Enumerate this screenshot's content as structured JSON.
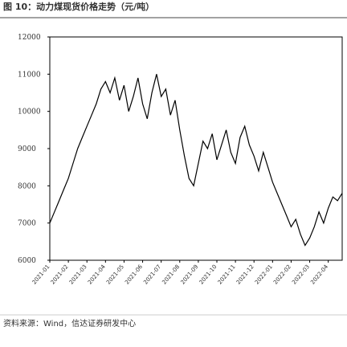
{
  "chart_data": {
    "type": "line",
    "title": "图 10：动力煤现货价格走势（元/吨）",
    "source": "资料来源：Wind，信达证券研发中心",
    "categories": [
      "2021-01",
      null,
      null,
      null,
      "2021-02",
      null,
      null,
      null,
      "2021-03",
      null,
      null,
      null,
      "2021-04",
      null,
      null,
      null,
      "2021-05",
      null,
      null,
      null,
      "2021-06",
      null,
      null,
      null,
      "2021-07",
      null,
      null,
      null,
      "2021-08",
      null,
      null,
      null,
      "2021-09",
      null,
      null,
      null,
      "2021-10",
      null,
      null,
      null,
      "2021-11",
      null,
      null,
      null,
      "2021-12",
      null,
      null,
      null,
      "2022-01",
      null,
      null,
      null,
      "2022-02",
      null,
      null,
      null,
      "2022-03",
      null,
      null,
      null,
      "2022-04",
      null,
      null,
      null
    ],
    "values": [
      7000,
      7300,
      7600,
      7900,
      8200,
      8600,
      9000,
      9300,
      9600,
      9900,
      10200,
      10600,
      10800,
      10500,
      10900,
      10300,
      10700,
      10000,
      10400,
      10900,
      10200,
      9800,
      10500,
      11000,
      10400,
      10600,
      9900,
      10300,
      9500,
      8800,
      8200,
      8000,
      8600,
      9200,
      9000,
      9400,
      8700,
      9100,
      9500,
      8900,
      8600,
      9300,
      9600,
      9100,
      8800,
      8400,
      8900,
      8500,
      8100,
      7800,
      7500,
      7200,
      6900,
      7100,
      6700,
      6400,
      6600,
      6900,
      7300,
      7000,
      7400,
      7700,
      7600,
      7800
    ],
    "color": "#000000",
    "ylim": [
      6000,
      12000
    ],
    "yticks": [
      6000,
      7000,
      8000,
      9000,
      10000,
      11000,
      12000
    ]
  }
}
